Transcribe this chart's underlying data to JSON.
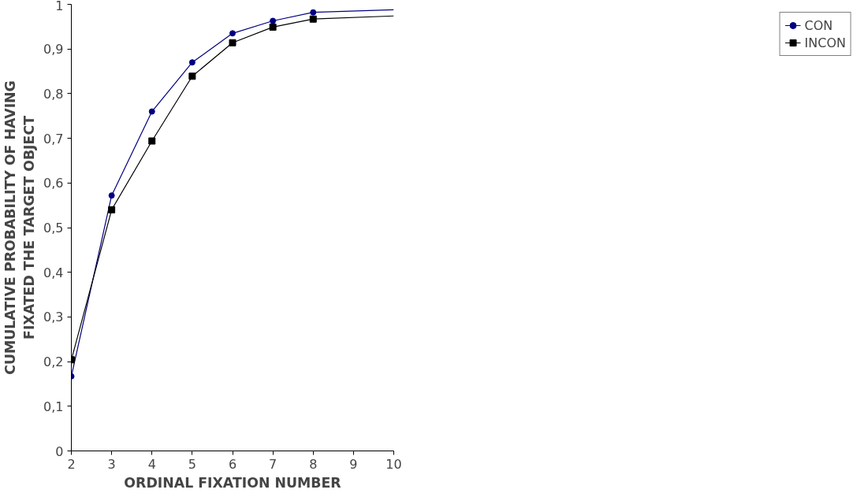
{
  "chart_data": {
    "type": "line",
    "xlabel": "ORDINAL FIXATION NUMBER",
    "ylabel": "CUMULATIVE PROBABILITY OF HAVING\nFIXATED THE TARGET OBJECT",
    "xlim": [
      2,
      10
    ],
    "xticks": [
      2,
      3,
      4,
      5,
      6,
      7,
      8,
      9,
      10
    ],
    "ylim": [
      0,
      1
    ],
    "yticks": [
      0,
      {
        "value": 0.1,
        "label": "0,1"
      },
      {
        "value": 0.2,
        "label": "0,2"
      },
      {
        "value": 0.3,
        "label": "0,3"
      },
      {
        "value": 0.4,
        "label": "0,4"
      },
      {
        "value": 0.5,
        "label": "0,5"
      },
      {
        "value": 0.6,
        "label": "0,6"
      },
      {
        "value": 0.7,
        "label": "0,7"
      },
      {
        "value": 0.8,
        "label": "0,8"
      },
      {
        "value": 0.9,
        "label": "0,9"
      },
      1
    ],
    "grid": false,
    "legend": "right",
    "line_style": "solid",
    "series": [
      {
        "name": "CON",
        "color": "#000080",
        "marker": "circle",
        "x": [
          2,
          3,
          4,
          5,
          6,
          7,
          8
        ],
        "values": [
          0.167,
          0.572,
          0.76,
          0.87,
          0.935,
          0.963,
          0.982
        ]
      },
      {
        "name": "INCON",
        "color": "#000000",
        "marker": "square",
        "x": [
          2,
          3,
          4,
          5,
          6,
          7,
          8
        ],
        "values": [
          0.204,
          0.54,
          0.694,
          0.839,
          0.914,
          0.949,
          0.967
        ]
      },
      {
        "color": "#000080",
        "marker": "none",
        "x": [
          8,
          10
        ],
        "values": [
          0.982,
          0.988
        ]
      },
      {
        "color": "#000000",
        "marker": "none",
        "x": [
          8,
          10
        ],
        "values": [
          0.967,
          0.974
        ]
      }
    ]
  }
}
